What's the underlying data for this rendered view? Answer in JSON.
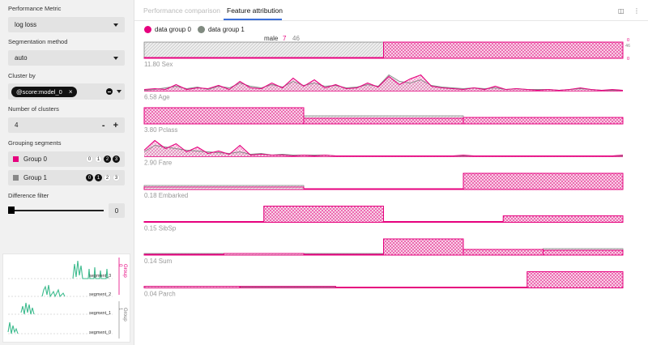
{
  "sidebar": {
    "performance_metric": {
      "label": "Performance Metric",
      "value": "log loss"
    },
    "segmentation_method": {
      "label": "Segmentation method",
      "value": "auto"
    },
    "cluster_by": {
      "label": "Cluster by",
      "chip": "@score:model_0",
      "chip_close": "×"
    },
    "num_clusters": {
      "label": "Number of clusters",
      "value": "4",
      "minus": "-",
      "plus": "+"
    },
    "grouping": {
      "label": "Grouping segments",
      "groups": [
        {
          "name": "Group 0",
          "color": "#e6007e",
          "dots": [
            "0",
            "1",
            "2",
            "3"
          ],
          "active": [
            false,
            false,
            true,
            true
          ]
        },
        {
          "name": "Group 1",
          "color": "#888888",
          "dots": [
            "0",
            "1",
            "2",
            "3"
          ],
          "active": [
            true,
            true,
            false,
            false
          ]
        }
      ]
    },
    "difference_filter": {
      "label": "Difference filter",
      "value": "0"
    },
    "mini_chart": {
      "segments": [
        "segment_3",
        "segment_2",
        "segment_1",
        "segment_0"
      ],
      "group_labels": [
        "Group 0",
        "Group 1"
      ]
    }
  },
  "tabs": [
    {
      "label": "Performance comparison",
      "active": false
    },
    {
      "label": "Feature attribution",
      "active": true
    }
  ],
  "legend": [
    {
      "label": "data group 0",
      "color": "#e6007e"
    },
    {
      "label": "data group 1",
      "color": "#808a80"
    }
  ],
  "tooltip": {
    "category": "male",
    "value0": "7",
    "value1": "46"
  },
  "axis_small": {
    "top0": "0",
    "top1": "46",
    "bottom": "0"
  },
  "features": [
    {
      "name": "Sex",
      "score": "11.80",
      "type": "hist",
      "g0": [
        0.0,
        1.0
      ],
      "g1": [
        1.0,
        0.0
      ]
    },
    {
      "name": "Age",
      "score": "6.58",
      "type": "line",
      "g0": [
        0.1,
        0.15,
        0.1,
        0.4,
        0.1,
        0.2,
        0.15,
        0.35,
        0.1,
        0.6,
        0.2,
        0.15,
        0.5,
        0.2,
        0.8,
        0.3,
        0.7,
        0.2,
        0.4,
        0.15,
        0.2,
        0.5,
        0.25,
        0.9,
        0.4,
        0.75,
        1.0,
        0.3,
        0.2,
        0.15,
        0.1,
        0.2,
        0.1,
        0.3,
        0.1,
        0.15,
        0.1,
        0.05,
        0.1,
        0.05,
        0.1,
        0.2,
        0.1,
        0.05,
        0.1,
        0.05
      ],
      "g1": [
        0.05,
        0.1,
        0.2,
        0.3,
        0.15,
        0.25,
        0.1,
        0.3,
        0.2,
        0.5,
        0.3,
        0.2,
        0.4,
        0.25,
        0.6,
        0.35,
        0.5,
        0.3,
        0.35,
        0.2,
        0.25,
        0.4,
        0.3,
        1.0,
        0.6,
        0.5,
        0.7,
        0.35,
        0.25,
        0.2,
        0.15,
        0.2,
        0.15,
        0.2,
        0.1,
        0.15,
        0.1,
        0.1,
        0.1,
        0.05,
        0.1,
        0.15,
        0.1,
        0.05,
        0.05,
        0.05
      ]
    },
    {
      "name": "Pclass",
      "score": "3.80",
      "type": "hist",
      "g0": [
        1.0,
        0.35,
        0.4
      ],
      "g1": [
        1.0,
        0.5,
        0.25
      ]
    },
    {
      "name": "Fare",
      "score": "2.90",
      "type": "line",
      "g0": [
        0.4,
        1.0,
        0.5,
        0.8,
        0.3,
        0.6,
        0.2,
        0.35,
        0.15,
        0.7,
        0.1,
        0.15,
        0.1,
        0.1,
        0.05,
        0.1,
        0.05,
        0.1,
        0.05,
        0.05,
        0.05,
        0.05,
        0.05,
        0.05,
        0.05,
        0.05,
        0.05,
        0.05,
        0.05,
        0.05,
        0.1,
        0.05,
        0.05,
        0.05,
        0.05,
        0.05,
        0.05,
        0.05,
        0.05,
        0.05,
        0.05,
        0.05,
        0.05,
        0.05,
        0.05,
        0.1
      ],
      "g1": [
        0.3,
        0.7,
        0.6,
        0.5,
        0.4,
        0.35,
        0.3,
        0.25,
        0.2,
        0.3,
        0.15,
        0.2,
        0.1,
        0.15,
        0.1,
        0.1,
        0.1,
        0.1,
        0.05,
        0.05,
        0.05,
        0.05,
        0.05,
        0.05,
        0.05,
        0.05,
        0.05,
        0.05,
        0.05,
        0.05,
        0.05,
        0.05,
        0.05,
        0.05,
        0.05,
        0.05,
        0.05,
        0.05,
        0.05,
        0.05,
        0.05,
        0.05,
        0.05,
        0.05,
        0.05,
        0.05
      ]
    },
    {
      "name": "Embarked",
      "score": "0.18",
      "type": "hist",
      "g0": [
        0.15,
        0.05,
        1.0
      ],
      "g1": [
        0.25,
        0.05,
        0.85
      ]
    },
    {
      "name": "SibSp",
      "score": "0.15",
      "type": "hist",
      "g0": [
        0.05,
        1.0,
        0.05,
        0.4
      ],
      "g1": [
        0.05,
        1.0,
        0.05,
        0.25
      ]
    },
    {
      "name": "Sum",
      "score": "0.14",
      "type": "hist",
      "g0": [
        0.05,
        0.1,
        0.05,
        1.0,
        0.35,
        0.3
      ],
      "g1": [
        0.1,
        0.1,
        0.1,
        1.0,
        0.35,
        0.4
      ]
    },
    {
      "name": "Parch",
      "score": "0.04",
      "type": "hist",
      "g0": [
        0.1,
        0.1,
        0.05,
        0.05,
        1.0
      ],
      "g1": [
        0.1,
        0.05,
        0.05,
        0.05,
        1.0
      ]
    }
  ]
}
